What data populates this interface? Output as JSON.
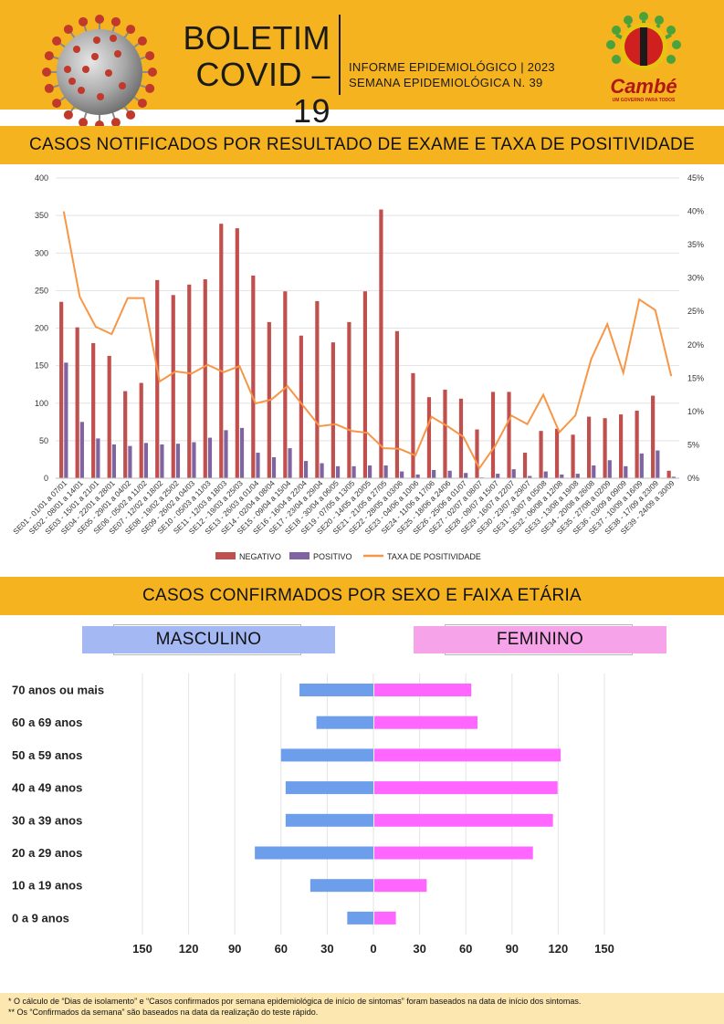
{
  "header": {
    "title_line1": "BOLETIM",
    "title_line2": "COVID – 19",
    "subtitle_line1": "INFORME EPIDEMIOLÓGICO | 2023",
    "subtitle_line2": "SEMANA EPIDEMIOLÓGICA  N. 39",
    "logo_text": "Cambé",
    "logo_tagline": "UM GOVERNO PARA TODOS"
  },
  "section1": {
    "title": "CASOS NOTIFICADOS POR RESULTADO DE EXAME E TAXA DE POSITIVIDADE"
  },
  "section2": {
    "title": "CASOS CONFIRMADOS POR SEXO E FAIXA ETÁRIA"
  },
  "colors": {
    "accent": "#f5b41f",
    "negativo": "#c0504d",
    "positivo": "#8064a2",
    "taxa": "#f79646",
    "masculino": "#6d9eeb",
    "feminino": "#ff66ff"
  },
  "chart_data": [
    {
      "type": "bar",
      "categories": [
        "SE01 - 01/01 a 07/01",
        "SE02 - 08/01 a 14/01",
        "SE03 - 15/01 a 21/01",
        "SE04 - 22/01 a 28/01",
        "SE05 - 29/01 a 04/02",
        "SE06 - 05/02 a 11/02",
        "SE07 - 12/02 a 18/02",
        "SE08 - 19/02 a 25/02",
        "SE09 - 26/02 a 04/03",
        "SE10 - 05/03 a 11/03",
        "SE11 - 12/03 a 18/03",
        "SE12 - 19/03 a 25/03",
        "SE13 - 26/03 a 01/04",
        "SE14 - 02/04 a 08/04",
        "SE15 - 09/04 a 15/04",
        "SE16 - 16/04 a 22/04",
        "SE17 - 23/04 a 29/04",
        "SE18 - 30/04 a 06/05",
        "SE19 - 07/05 a 13/05",
        "SE20 - 14/05 a 20/05",
        "SE21 - 21/05 a 27/05",
        "SE22 - 28/05 a 03/06",
        "SE23 - 04/06 a 10/06",
        "SE24 - 11/06 a 17/06",
        "SE25 - 18/06 a 24/06",
        "SE26 - 25/06 a 01/07",
        "SE27 - 02/07 a 08/07",
        "SE28 - 09/07 a 15/07",
        "SE29 - 16/07 a 22/07",
        "SE30 - 23/07 a 29/07",
        "SE31 - 30/07 a 05/08",
        "SE32 - 06/08 a 12/08",
        "SE33 - 13/08 a 19/08",
        "SE34 - 20/08 a 26/08",
        "SE35 - 27/08 a 02/09",
        "SE36 - 03/09 a 09/09",
        "SE37 - 10/09 a 16/09",
        "SE38 - 17/09 a 23/09",
        "SE39 - 24/09 a 30/09"
      ],
      "series": [
        {
          "name": "NEGATIVO",
          "values": [
            235,
            201,
            180,
            163,
            116,
            127,
            264,
            244,
            258,
            265,
            339,
            333,
            270,
            208,
            249,
            190,
            236,
            181,
            208,
            249,
            358,
            196,
            140,
            108,
            118,
            106,
            65,
            115,
            115,
            34,
            63,
            66,
            58,
            82,
            80,
            85,
            90,
            110,
            10
          ]
        },
        {
          "name": "POSITIVO",
          "values": [
            154,
            75,
            53,
            45,
            43,
            47,
            45,
            46,
            48,
            54,
            64,
            67,
            34,
            28,
            40,
            23,
            20,
            16,
            16,
            17,
            17,
            9,
            5,
            11,
            10,
            7,
            1,
            6,
            12,
            3,
            9,
            5,
            6,
            17,
            24,
            16,
            33,
            37,
            2
          ]
        },
        {
          "name": "TAXA DE POSITIVIDADE",
          "values": [
            40,
            27.2,
            22.7,
            21.6,
            27,
            27,
            14.5,
            16,
            15.7,
            17,
            15.9,
            16.8,
            11.2,
            11.8,
            13.8,
            10.8,
            7.8,
            8.1,
            7.1,
            6.8,
            4.5,
            4.4,
            3.4,
            9.2,
            7.8,
            6.2,
            1.5,
            4.9,
            9.4,
            8.1,
            12.5,
            6.9,
            9.4,
            17.9,
            23.1,
            15.8,
            26.8,
            25.2,
            15.3
          ]
        }
      ],
      "yticks_left": [
        "400",
        "350",
        "300",
        "250",
        "200",
        "150",
        "100",
        "50",
        "0"
      ],
      "yticks_right": [
        "45%",
        "40%",
        "35%",
        "30%",
        "25%",
        "20%",
        "15%",
        "10%",
        "5%",
        "0%"
      ],
      "ylim": [
        0,
        400
      ],
      "ylim_right": [
        0,
        45
      ],
      "legend_position": "bottom",
      "grid": true
    },
    {
      "type": "bar",
      "orientation": "horizontal",
      "categories": [
        "70 anos ou mais",
        "60 a 69 anos",
        "50 a 59 anos",
        "40 a 49 anos",
        "30 a 39 anos",
        "20 a 29 anos",
        "10 a 19 anos",
        "0 a 9 anos"
      ],
      "series": [
        {
          "name": "MASCULINO",
          "values": [
            48,
            37,
            60,
            57,
            57,
            77,
            41,
            17
          ]
        },
        {
          "name": "FEMININO",
          "values": [
            63,
            67,
            121,
            119,
            116,
            103,
            34,
            14
          ]
        }
      ],
      "xticks": [
        "150",
        "120",
        "90",
        "60",
        "30",
        "0",
        "30",
        "60",
        "90",
        "120",
        "150"
      ],
      "xlim": [
        -150,
        150
      ],
      "grid": true
    }
  ],
  "footer": {
    "note1": "* O cálculo de “Dias de isolamento” e “Casos confirmados por semana epidemiológica de início de sintomas” foram baseados na data de início dos sintomas.",
    "note2": "** Os “Confirmados da semana” são baseados na data da realização do teste rápido."
  }
}
